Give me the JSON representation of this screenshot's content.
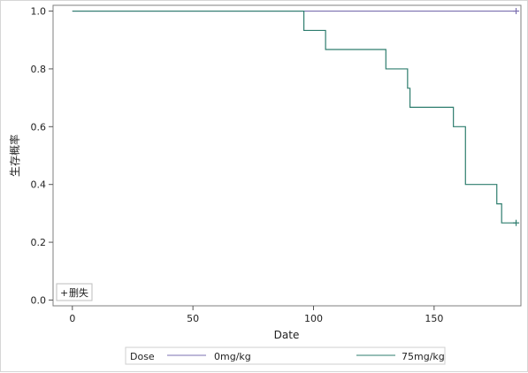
{
  "chart_data": {
    "type": "line",
    "title": "",
    "xlabel": "Date",
    "ylabel": "生存概率",
    "xlim": [
      -8,
      186
    ],
    "ylim": [
      -0.02,
      1.02
    ],
    "xticks": [
      0,
      50,
      100,
      150
    ],
    "yticks": [
      0.0,
      0.2,
      0.4,
      0.6,
      0.8,
      1.0
    ],
    "xtick_labels": [
      "0",
      "50",
      "100",
      "150"
    ],
    "ytick_labels": [
      "0.0",
      "0.2",
      "0.4",
      "0.6",
      "0.8",
      "1.0"
    ],
    "step": true,
    "grid": false,
    "series": [
      {
        "name": "0mg/kg",
        "color": "#7b6fb0",
        "x": [
          0,
          184
        ],
        "y": [
          1.0,
          1.0
        ],
        "censored": [
          [
            184,
            1.0
          ]
        ]
      },
      {
        "name": "75mg/kg",
        "color": "#2e7d6e",
        "x": [
          0,
          96,
          105,
          130,
          139,
          140,
          158,
          163,
          176,
          178,
          184
        ],
        "y": [
          1.0,
          0.933,
          0.867,
          0.8,
          0.733,
          0.667,
          0.6,
          0.4,
          0.333,
          0.267,
          0.267
        ],
        "censored": [
          [
            184,
            0.267
          ]
        ]
      }
    ],
    "inset_legend": {
      "symbol": "+",
      "label": "删失",
      "placement": "bottom-left"
    },
    "legend": {
      "title": "Dose",
      "placement": "bottom"
    }
  }
}
